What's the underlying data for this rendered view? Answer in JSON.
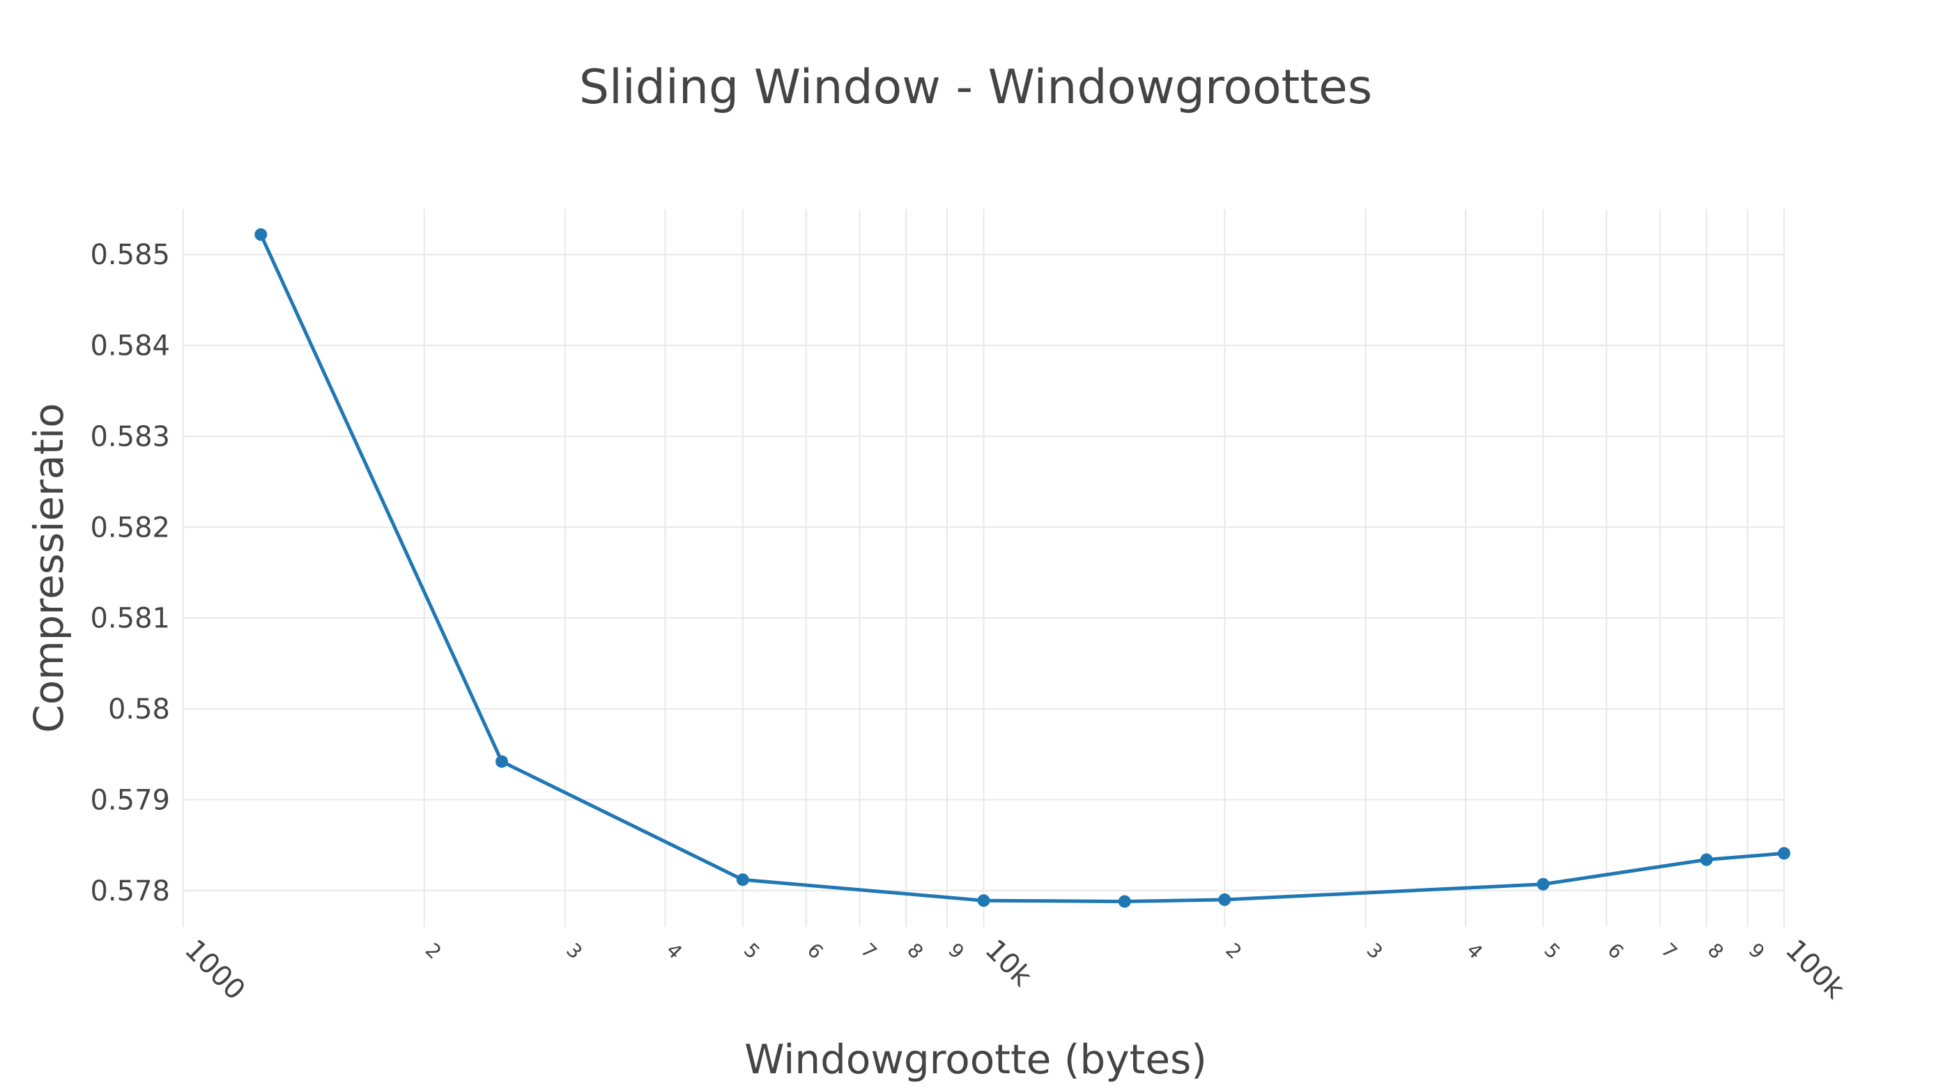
{
  "chart_data": {
    "type": "line",
    "title": "Sliding Window - Windowgroottes",
    "xlabel": "Windowgrootte (bytes)",
    "ylabel": "Compressieratio",
    "x_scale": "log",
    "xlim": [
      1000,
      100000
    ],
    "ylim": [
      0.5776,
      0.5855
    ],
    "grid": true,
    "legend": "none",
    "color": "#1f77b4",
    "x_tick_values": [
      1000,
      2000,
      3000,
      4000,
      5000,
      6000,
      7000,
      8000,
      9000,
      10000,
      20000,
      30000,
      40000,
      50000,
      60000,
      70000,
      80000,
      90000,
      100000
    ],
    "x_tick_labels": [
      "1000",
      "2",
      "3",
      "4",
      "5",
      "6",
      "7",
      "8",
      "9",
      "10k",
      "2",
      "3",
      "4",
      "5",
      "6",
      "7",
      "8",
      "9",
      "100k"
    ],
    "y_tick_values": [
      0.578,
      0.579,
      0.58,
      0.581,
      0.582,
      0.583,
      0.584,
      0.585
    ],
    "y_tick_labels": [
      "0.578",
      "0.579",
      "0.58",
      "0.581",
      "0.582",
      "0.583",
      "0.584",
      "0.585"
    ],
    "series": [
      {
        "x": [
          1250,
          2500,
          5000,
          10000,
          15000,
          20000,
          50000,
          80000,
          100000
        ],
        "y": [
          0.58522,
          0.57942,
          0.57812,
          0.57789,
          0.57788,
          0.5779,
          0.57807,
          0.57834,
          0.57841
        ]
      }
    ]
  }
}
